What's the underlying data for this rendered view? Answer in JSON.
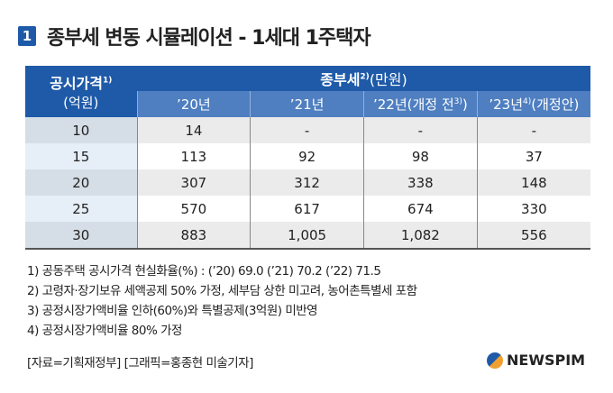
{
  "title": {
    "badge": "1",
    "text": "종부세 변동 시뮬레이션 - 1세대 1주택자"
  },
  "chart_data": {
    "type": "table",
    "header": {
      "col0": "공시가격",
      "col0_sup": "1)",
      "col0_unit": "(억원)",
      "group": "종부세",
      "group_sup": "2)",
      "group_unit": "(만원)"
    },
    "columns": [
      {
        "label": "’20년",
        "sup": "",
        "suffix": ""
      },
      {
        "label": "’21년",
        "sup": "",
        "suffix": ""
      },
      {
        "label": "’22년(개정 전",
        "sup": "3)",
        "suffix": ")"
      },
      {
        "label": "’23년",
        "sup": "4)",
        "suffix": "(개정안)"
      }
    ],
    "rows": [
      {
        "price": "10",
        "values": [
          "14",
          "-",
          "-",
          "-"
        ]
      },
      {
        "price": "15",
        "values": [
          "113",
          "92",
          "98",
          "37"
        ]
      },
      {
        "price": "20",
        "values": [
          "307",
          "312",
          "338",
          "148"
        ]
      },
      {
        "price": "25",
        "values": [
          "570",
          "617",
          "674",
          "330"
        ]
      },
      {
        "price": "30",
        "values": [
          "883",
          "1,005",
          "1,082",
          "556"
        ]
      }
    ]
  },
  "notes": [
    "1) 공동주택 공시가격 현실화율(%) : (’20) 69.0 (’21) 70.2 (’22) 71.5",
    "2) 고령자·장기보유 세액공제 50% 가정, 세부담 상한 미고려, 농어촌특별세 포함",
    "3) 공정시장가액비율 인하(60%)와 특별공제(3억원) 미반영",
    "4) 공정시장가액비율 80% 가정"
  ],
  "source": "[자료=기획재정부] [그래픽=홍종현 미술기자]",
  "logo": "NEWSPIM",
  "colors": {
    "header": "#1e5aa8",
    "subheader": "#4f7fc0"
  }
}
